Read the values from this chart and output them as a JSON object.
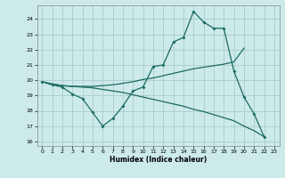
{
  "xlabel": "Humidex (Indice chaleur)",
  "background_color": "#cceaea",
  "grid_color": "#aacccc",
  "line_color": "#1a6b60",
  "xlim": [
    -0.5,
    23.5
  ],
  "ylim": [
    15.7,
    24.9
  ],
  "yticks": [
    16,
    17,
    18,
    19,
    20,
    21,
    22,
    23,
    24
  ],
  "xticks": [
    0,
    1,
    2,
    3,
    4,
    5,
    6,
    7,
    8,
    9,
    10,
    11,
    12,
    13,
    14,
    15,
    16,
    17,
    18,
    19,
    20,
    21,
    22,
    23
  ],
  "line1_x": [
    0,
    1,
    2,
    3,
    4,
    5,
    6,
    7,
    8,
    9,
    10,
    11,
    12,
    13,
    14,
    15,
    16,
    17,
    18,
    19,
    20,
    21,
    22
  ],
  "line1_y": [
    19.9,
    19.7,
    19.55,
    19.1,
    18.8,
    17.9,
    17.0,
    17.5,
    18.3,
    19.3,
    19.55,
    20.9,
    21.0,
    22.5,
    22.8,
    24.5,
    23.8,
    23.4,
    23.4,
    20.6,
    18.9,
    17.8,
    16.3
  ],
  "line2_x": [
    0,
    1,
    2,
    3,
    4,
    5,
    6,
    7,
    8,
    9,
    10,
    11,
    12,
    13,
    14,
    15,
    16,
    17,
    18,
    19,
    20
  ],
  "line2_y": [
    19.9,
    19.75,
    19.65,
    19.6,
    19.6,
    19.6,
    19.65,
    19.7,
    19.8,
    19.9,
    20.05,
    20.15,
    20.3,
    20.45,
    20.6,
    20.75,
    20.85,
    20.95,
    21.05,
    21.2,
    22.1
  ],
  "line3_x": [
    0,
    1,
    2,
    3,
    4,
    5,
    6,
    7,
    8,
    9,
    10,
    11,
    12,
    13,
    14,
    15,
    16,
    17,
    18,
    19,
    20,
    21,
    22
  ],
  "line3_y": [
    19.9,
    19.75,
    19.65,
    19.6,
    19.55,
    19.5,
    19.4,
    19.3,
    19.2,
    19.05,
    18.9,
    18.75,
    18.6,
    18.45,
    18.3,
    18.1,
    17.95,
    17.75,
    17.55,
    17.35,
    17.0,
    16.7,
    16.3
  ]
}
